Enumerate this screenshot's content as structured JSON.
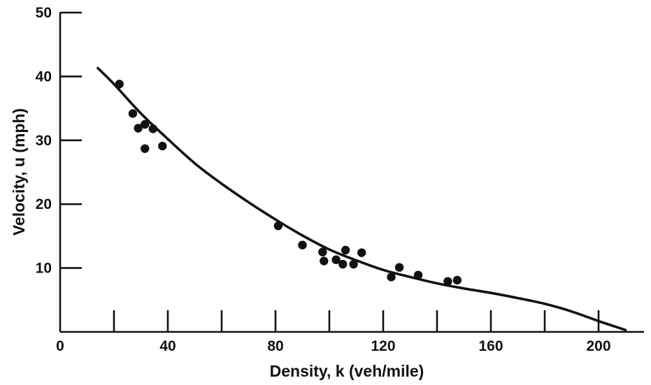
{
  "chart_data": {
    "type": "scatter",
    "title": "",
    "xlabel": "Density, k (veh/mile)",
    "ylabel": "Velocity, u (mph)",
    "xlim": [
      0,
      220
    ],
    "ylim": [
      0,
      50
    ],
    "x_ticks": [
      0,
      40,
      80,
      120,
      160,
      200
    ],
    "x_minor_ticks": [
      20,
      60,
      100,
      140,
      180
    ],
    "y_ticks": [
      10,
      20,
      30,
      40,
      50
    ],
    "grid": false,
    "legend": "none",
    "series": [
      {
        "type": "scatter",
        "color": "#111111",
        "points": [
          {
            "x": 22,
            "y": 38.8
          },
          {
            "x": 27,
            "y": 34.2
          },
          {
            "x": 29,
            "y": 31.9
          },
          {
            "x": 31.5,
            "y": 32.5
          },
          {
            "x": 31.5,
            "y": 28.7
          },
          {
            "x": 34.5,
            "y": 31.8
          },
          {
            "x": 38,
            "y": 29.1
          },
          {
            "x": 81,
            "y": 16.6
          },
          {
            "x": 90,
            "y": 13.6
          },
          {
            "x": 97.5,
            "y": 12.5
          },
          {
            "x": 98,
            "y": 11.1
          },
          {
            "x": 102.5,
            "y": 11.3
          },
          {
            "x": 105,
            "y": 10.6
          },
          {
            "x": 106,
            "y": 12.8
          },
          {
            "x": 109,
            "y": 10.6
          },
          {
            "x": 112,
            "y": 12.4
          },
          {
            "x": 123,
            "y": 8.6
          },
          {
            "x": 126,
            "y": 10.1
          },
          {
            "x": 133,
            "y": 8.9
          },
          {
            "x": 144,
            "y": 7.9
          },
          {
            "x": 147.5,
            "y": 8.1
          }
        ]
      },
      {
        "type": "line",
        "color": "#111111",
        "points": [
          {
            "x": 14,
            "y": 41.3
          },
          {
            "x": 20,
            "y": 38.8
          },
          {
            "x": 30,
            "y": 34.2
          },
          {
            "x": 40,
            "y": 30.2
          },
          {
            "x": 50,
            "y": 26.4
          },
          {
            "x": 60,
            "y": 23.2
          },
          {
            "x": 70,
            "y": 20.3
          },
          {
            "x": 80,
            "y": 17.6
          },
          {
            "x": 90,
            "y": 15.1
          },
          {
            "x": 100,
            "y": 12.9
          },
          {
            "x": 110,
            "y": 11.2
          },
          {
            "x": 120,
            "y": 9.7
          },
          {
            "x": 130,
            "y": 8.6
          },
          {
            "x": 140,
            "y": 7.6
          },
          {
            "x": 150,
            "y": 6.8
          },
          {
            "x": 160,
            "y": 6.1
          },
          {
            "x": 170,
            "y": 5.3
          },
          {
            "x": 180,
            "y": 4.4
          },
          {
            "x": 190,
            "y": 3.2
          },
          {
            "x": 200,
            "y": 1.7
          },
          {
            "x": 210,
            "y": 0.3
          }
        ]
      }
    ]
  }
}
